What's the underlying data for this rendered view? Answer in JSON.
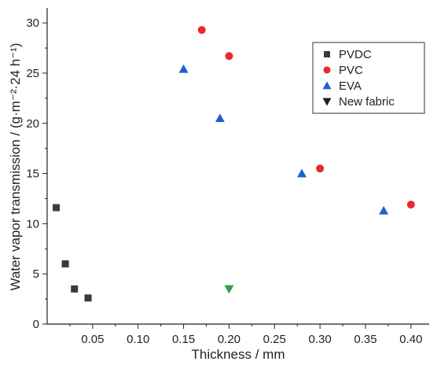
{
  "chart_data": {
    "type": "scatter",
    "xlabel": "Thickness / mm",
    "ylabel": "Water vapor transmission / (g·m⁻²·24 h⁻¹)",
    "xlim": [
      0.0,
      0.42
    ],
    "ylim": [
      0,
      31.5
    ],
    "xticks": [
      0.05,
      0.1,
      0.15,
      0.2,
      0.25,
      0.3,
      0.35,
      0.4
    ],
    "xtick_labels": [
      "0.05",
      "0.10",
      "0.15",
      "0.20",
      "0.25",
      "0.30",
      "0.35",
      "0.40"
    ],
    "yticks": [
      0,
      5,
      10,
      15,
      20,
      25,
      30
    ],
    "ytick_labels": [
      "0",
      "5",
      "10",
      "15",
      "20",
      "25",
      "30"
    ],
    "grid": false,
    "legend_position": "top-right",
    "series": [
      {
        "name": "PVDC",
        "marker": "square",
        "color": "#3a3a3a",
        "points": [
          [
            0.01,
            11.6
          ],
          [
            0.02,
            6.0
          ],
          [
            0.03,
            3.5
          ],
          [
            0.045,
            2.6
          ]
        ]
      },
      {
        "name": "PVC",
        "marker": "circle",
        "color": "#e8282b",
        "points": [
          [
            0.17,
            29.3
          ],
          [
            0.2,
            26.7
          ],
          [
            0.3,
            15.5
          ],
          [
            0.4,
            11.9
          ]
        ]
      },
      {
        "name": "EVA",
        "marker": "triangle-up",
        "color": "#1f5fd6",
        "points": [
          [
            0.15,
            25.4
          ],
          [
            0.19,
            20.5
          ],
          [
            0.28,
            15.0
          ],
          [
            0.37,
            11.3
          ]
        ]
      },
      {
        "name": "New fabric",
        "marker": "triangle-down",
        "color": "#1f1f1f",
        "points": [
          [
            0.2,
            3.5
          ]
        ],
        "point_colors": [
          "#2e9e4f"
        ]
      }
    ]
  }
}
